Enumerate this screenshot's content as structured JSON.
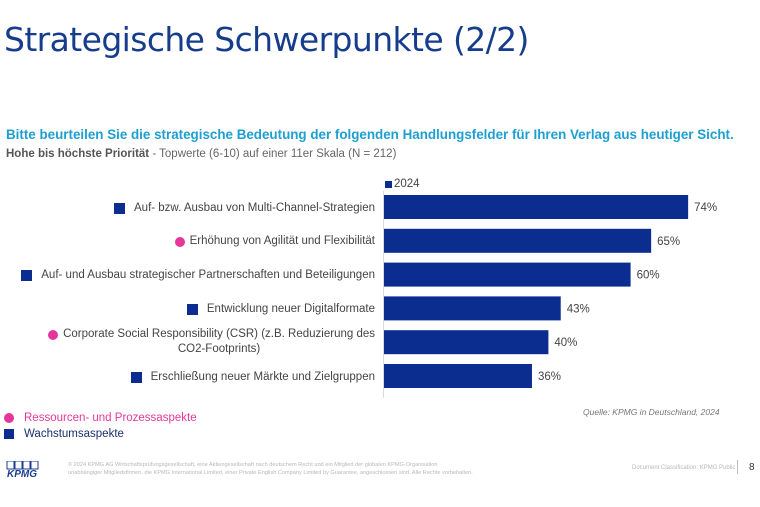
{
  "slide": {
    "title": "Strategische Schwerpunkte (2/2)",
    "question": "Bitte beurteilen Sie die strategische Bedeutung der folgenden Handlungsfelder für Ihren Verlag aus heutiger Sicht.",
    "subline_bold": "Hohe bis höchste Priorität",
    "subline_rest": " - Topwerte (6-10) auf einer 11er Skala (N = 212)",
    "source": "Quelle: KPMG in Deutschland, 2024"
  },
  "colors": {
    "bar": "#0a2d8f",
    "growth_marker": "#0a2d8f",
    "resource_marker": "#e6369b",
    "title": "#163d8c",
    "question": "#1e9fd1"
  },
  "chart_data": {
    "type": "bar",
    "orientation": "horizontal",
    "title": "",
    "xlabel": "",
    "ylabel": "",
    "xlim": [
      0,
      100
    ],
    "grid": false,
    "legend_position": "top-left",
    "series": [
      {
        "name": "2024",
        "values": [
          74,
          65,
          60,
          43,
          40,
          36
        ]
      }
    ],
    "categories": [
      "Auf- bzw. Ausbau von Multi-Channel-Strategien",
      "Erhöhung von Agilität und Flexibilität",
      "Auf- und Ausbau strategischer Partnerschaften und Beteiligungen",
      "Entwicklung neuer Digitalformate",
      "Corporate Social Responsibility (CSR) (z.B. Reduzierung des CO2-Footprints)",
      "Erschließung neuer Märkte und Zielgruppen"
    ],
    "category_lines": [
      [
        "Auf- bzw. Ausbau von Multi-Channel-Strategien"
      ],
      [
        "Erhöhung von Agilität und Flexibilität"
      ],
      [
        "Auf- und Ausbau strategischer Partnerschaften und Beteiligungen"
      ],
      [
        "Entwicklung neuer Digitalformate"
      ],
      [
        "Corporate Social Responsibility (CSR) (z.B. Reduzierung des",
        "CO2-Footprints)"
      ],
      [
        "Erschließung neuer Märkte und Zielgruppen"
      ]
    ],
    "category_types": [
      "growth",
      "resource",
      "growth",
      "growth",
      "resource",
      "growth"
    ],
    "data_labels": [
      "74%",
      "65%",
      "60%",
      "43%",
      "40%",
      "36%"
    ],
    "value_suffix": "%"
  },
  "legend": {
    "year_label": "2024",
    "resource_label": "Ressourcen- und Prozessaspekte",
    "growth_label": "Wachstumsaspekte"
  },
  "footer": {
    "logo_text": "KPMG",
    "legal_line1": "© 2024 KPMG AG Wirtschaftsprüfungsgesellschaft, eine Aktiengesellschaft nach deutschem Recht und ein Mitglied der globalen KPMG-Organisation",
    "legal_line2": "unabhängiger Mitgliedsfirmen, die KPMG International Limited, einer Private English Company Limited by Guarantee, angeschlossen sind. Alle Rechte vorbehalten.",
    "classification": "Document Classification: KPMG Public",
    "page_number": "8"
  }
}
